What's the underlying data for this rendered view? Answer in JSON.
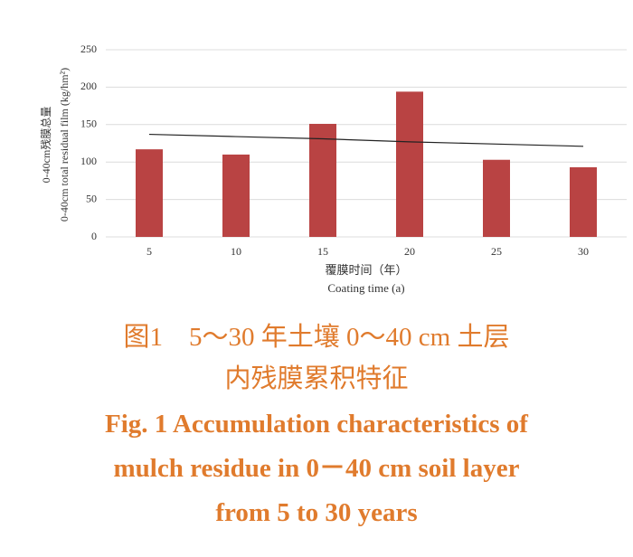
{
  "chart_data": {
    "type": "bar",
    "y_title": [
      "0-40cm残膜总量",
      "0-40cm total residual film (kg/hm²)"
    ],
    "x_title": [
      "覆膜时间（年）",
      "Coating time (a)"
    ],
    "categories": [
      "5",
      "10",
      "15",
      "20",
      "25",
      "30"
    ],
    "values": [
      117,
      110,
      151,
      194,
      103,
      93
    ],
    "color": "#b94343",
    "trendline": {
      "color": "#222222",
      "values": [
        137,
        134,
        131,
        127,
        124,
        121
      ]
    },
    "ylim": [
      0,
      250
    ],
    "yticks": [
      0,
      50,
      100,
      150,
      200,
      250
    ],
    "grid": true
  },
  "caption": [
    "图1　5～30 年土壤 0～40 cm 土层",
    "内残膜累积特征",
    "Fig. 1 Accumulation characteristics of",
    "mulch residue in 0－40 cm soil layer",
    "from 5 to 30 years"
  ]
}
